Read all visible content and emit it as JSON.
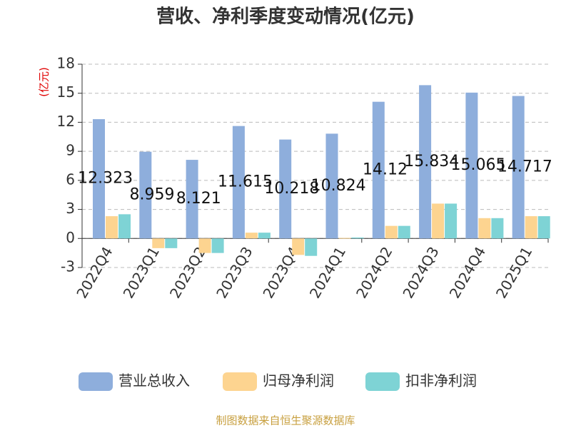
{
  "chart_data": {
    "type": "bar",
    "title": "营收、净利季度变动情况(亿元)",
    "y_axis_label": "(亿元)",
    "source": "制图数据来自恒生聚源数据库",
    "categories": [
      "2022Q4",
      "2023Q1",
      "2023Q2",
      "2023Q3",
      "2023Q4",
      "2024Q1",
      "2024Q2",
      "2024Q3",
      "2024Q4",
      "2025Q1"
    ],
    "series": [
      {
        "name": "营业总收入",
        "color": "#8eaedc",
        "values": [
          12.323,
          8.959,
          8.121,
          11.615,
          10.218,
          10.824,
          14.12,
          15.834,
          15.065,
          14.717
        ],
        "show_labels": true
      },
      {
        "name": "归母净利润",
        "color": "#fdd490",
        "values": [
          2.3,
          -1.0,
          -1.5,
          0.6,
          -1.7,
          0.05,
          1.3,
          3.6,
          2.1,
          2.3
        ]
      },
      {
        "name": "扣非净利润",
        "color": "#7ed3d5",
        "values": [
          2.5,
          -1.0,
          -1.5,
          0.6,
          -1.8,
          0.1,
          1.3,
          3.6,
          2.1,
          2.3
        ]
      }
    ],
    "ylim": [
      -3,
      18
    ],
    "yticks": [
      -3,
      0,
      3,
      6,
      9,
      12,
      15,
      18
    ],
    "grid": true
  }
}
